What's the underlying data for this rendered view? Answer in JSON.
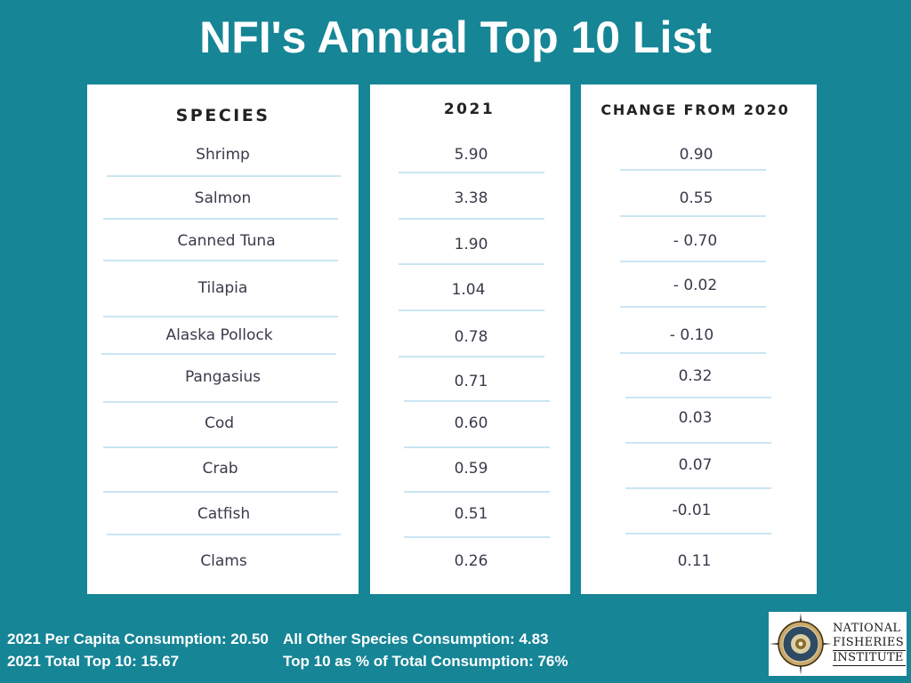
{
  "title": "NFI's Annual Top 10 List",
  "columns": {
    "species_header": "SPECIES",
    "year_header": "2021",
    "change_header": "CHANGE FROM 2020"
  },
  "rows": [
    {
      "species": "Shrimp",
      "value_2021": "5.90",
      "change": "0.90"
    },
    {
      "species": "Salmon",
      "value_2021": "3.38",
      "change": "0.55"
    },
    {
      "species": "Canned Tuna",
      "value_2021": "1.90",
      "change": "- 0.70"
    },
    {
      "species": "Tilapia",
      "value_2021": "1.04",
      "change": "- 0.02"
    },
    {
      "species": "Alaska Pollock",
      "value_2021": "0.78",
      "change": "- 0.10"
    },
    {
      "species": "Pangasius",
      "value_2021": "0.71",
      "change": "0.32"
    },
    {
      "species": "Cod",
      "value_2021": "0.60",
      "change": "0.03"
    },
    {
      "species": "Crab",
      "value_2021": "0.59",
      "change": "0.07"
    },
    {
      "species": "Catfish",
      "value_2021": "0.51",
      "change": "-0.01"
    },
    {
      "species": "Clams",
      "value_2021": "0.26",
      "change": "0.11"
    }
  ],
  "footer": {
    "per_capita": "2021  Per Capita Consumption: 20.50",
    "total_top10": "2021 Total Top 10: 15.67",
    "other_species": "All Other Species Consumption: 4.83",
    "top10_percent": "Top 10 as % of Total Consumption: 76%"
  },
  "logo": {
    "line1": "NATIONAL",
    "line2": "FISHERIES",
    "line3": "INSTITUTE",
    "icon": "compass-seal-icon"
  },
  "colors": {
    "background": "#168596",
    "card": "#ffffff",
    "rule": "#c9e6f2"
  }
}
